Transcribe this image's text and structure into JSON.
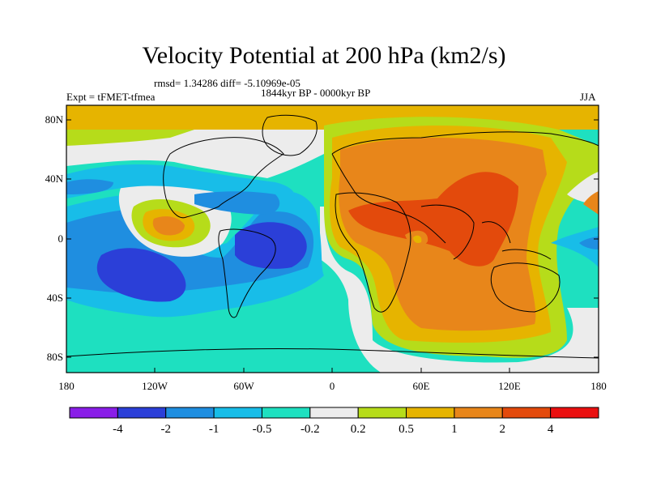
{
  "title": "Velocity Potential at 200 hPa (km2/s)",
  "stats_text": "rmsd= 1.34286 diff= -5.10969e-05",
  "period_text": "1844kyr BP - 0000kyr BP",
  "experiment_text": "Expt = tFMET-tfmea",
  "season_text": "JJA",
  "y_ticks": [
    "80N",
    "40N",
    "0",
    "40S",
    "80S"
  ],
  "x_ticks": [
    "180",
    "120W",
    "60W",
    "0",
    "60E",
    "120E",
    "180"
  ],
  "colorbar": {
    "labels": [
      "-4",
      "-2",
      "-1",
      "-0.5",
      "-0.2",
      "0.2",
      "0.5",
      "1",
      "2",
      "4"
    ],
    "colors": [
      "#8a1ee8",
      "#2b3fd8",
      "#1f8ee0",
      "#18bde8",
      "#1ee0c0",
      "#ececec",
      "#b6dc1a",
      "#e6b400",
      "#e8861a",
      "#e34a0c",
      "#ea1010"
    ]
  }
}
